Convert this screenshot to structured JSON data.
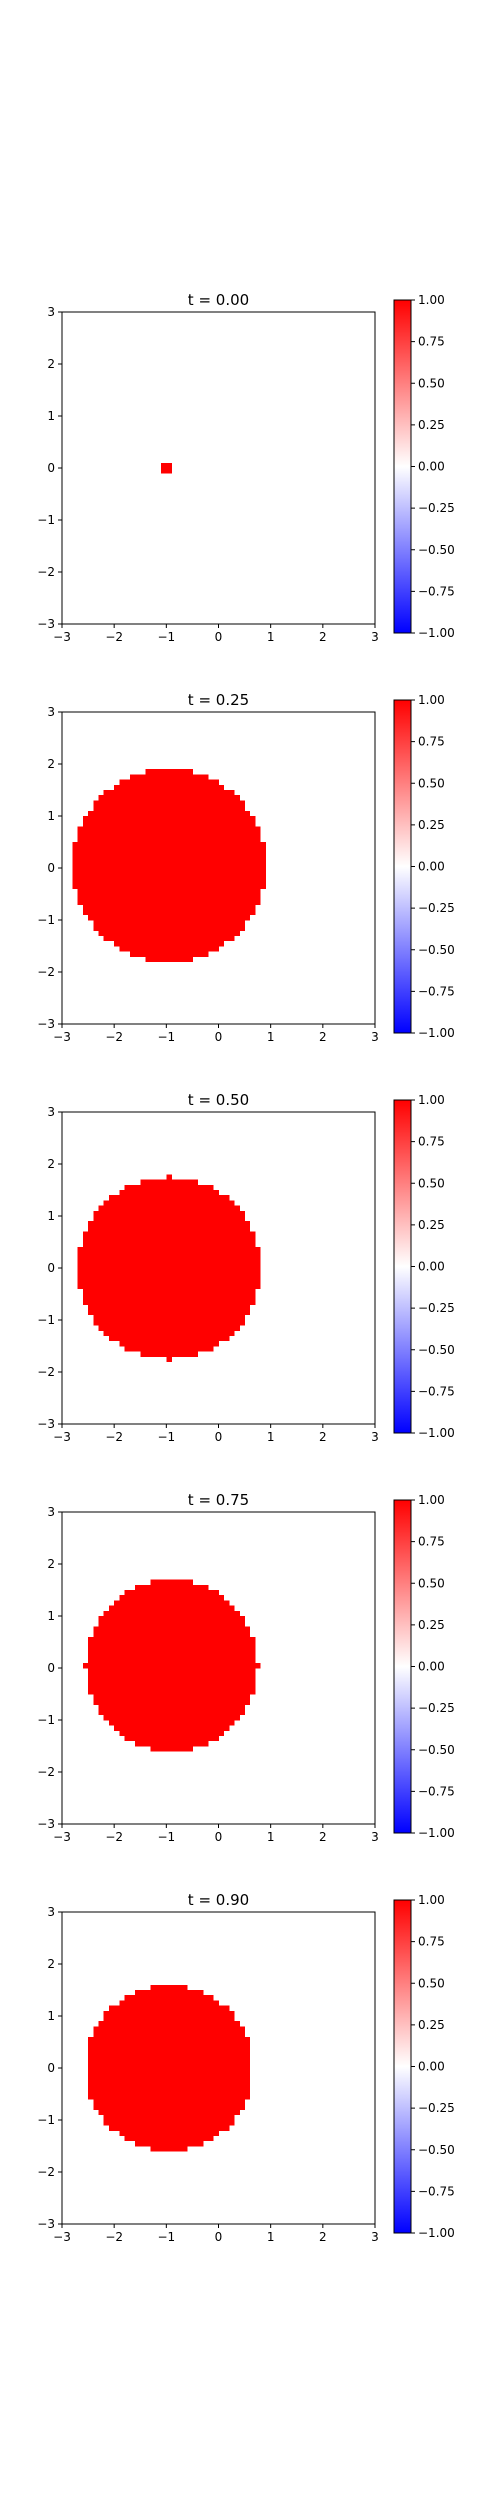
{
  "chart_data": [
    {
      "type": "heatmap",
      "title": "t = 0.00",
      "xlim": [
        -3,
        3
      ],
      "ylim": [
        -3,
        3
      ],
      "xticks": [
        "−3",
        "−2",
        "−1",
        "0",
        "1",
        "2",
        "3"
      ],
      "yticks": [
        "−3",
        "−2",
        "−1",
        "0",
        "1",
        "2",
        "3"
      ],
      "region": {
        "shape": "disc",
        "value": 1.0,
        "center": [
          -1.0,
          0.0
        ],
        "radius": 0.12
      },
      "colorbar": {
        "range": [
          -1,
          1
        ],
        "colormap": "bwr",
        "ticks": [
          "1.00",
          "0.75",
          "0.50",
          "0.25",
          "0.00",
          "−0.25",
          "−0.50",
          "−0.75",
          "−1.00"
        ]
      },
      "grid": false
    },
    {
      "type": "heatmap",
      "title": "t = 0.25",
      "xlim": [
        -3,
        3
      ],
      "ylim": [
        -3,
        3
      ],
      "xticks": [
        "−3",
        "−2",
        "−1",
        "0",
        "1",
        "2",
        "3"
      ],
      "yticks": [
        "−3",
        "−2",
        "−1",
        "0",
        "1",
        "2",
        "3"
      ],
      "region": {
        "shape": "disc",
        "value": 1.0,
        "center": [
          -0.95,
          0.05
        ],
        "radius": 1.85
      },
      "colorbar": {
        "range": [
          -1,
          1
        ],
        "colormap": "bwr",
        "ticks": [
          "1.00",
          "0.75",
          "0.50",
          "0.25",
          "0.00",
          "−0.25",
          "−0.50",
          "−0.75",
          "−1.00"
        ]
      },
      "grid": false
    },
    {
      "type": "heatmap",
      "title": "t = 0.50",
      "xlim": [
        -3,
        3
      ],
      "ylim": [
        -3,
        3
      ],
      "xticks": [
        "−3",
        "−2",
        "−1",
        "0",
        "1",
        "2",
        "3"
      ],
      "yticks": [
        "−3",
        "−2",
        "−1",
        "0",
        "1",
        "2",
        "3"
      ],
      "region": {
        "shape": "disc",
        "value": 1.0,
        "center": [
          -0.95,
          0.0
        ],
        "radius": 1.75
      },
      "colorbar": {
        "range": [
          -1,
          1
        ],
        "colormap": "bwr",
        "ticks": [
          "1.00",
          "0.75",
          "0.50",
          "0.25",
          "0.00",
          "−0.25",
          "−0.50",
          "−0.75",
          "−1.00"
        ]
      },
      "grid": false
    },
    {
      "type": "heatmap",
      "title": "t = 0.75",
      "xlim": [
        -3,
        3
      ],
      "ylim": [
        -3,
        3
      ],
      "xticks": [
        "−3",
        "−2",
        "−1",
        "0",
        "1",
        "2",
        "3"
      ],
      "yticks": [
        "−3",
        "−2",
        "−1",
        "0",
        "1",
        "2",
        "3"
      ],
      "region": {
        "shape": "disc",
        "value": 1.0,
        "center": [
          -0.9,
          0.05
        ],
        "radius": 1.65
      },
      "colorbar": {
        "range": [
          -1,
          1
        ],
        "colormap": "bwr",
        "ticks": [
          "1.00",
          "0.75",
          "0.50",
          "0.25",
          "0.00",
          "−0.25",
          "−0.50",
          "−0.75",
          "−1.00"
        ]
      },
      "grid": false
    },
    {
      "type": "heatmap",
      "title": "t = 0.90",
      "xlim": [
        -3,
        3
      ],
      "ylim": [
        -3,
        3
      ],
      "xticks": [
        "−3",
        "−2",
        "−1",
        "0",
        "1",
        "2",
        "3"
      ],
      "yticks": [
        "−3",
        "−2",
        "−1",
        "0",
        "1",
        "2",
        "3"
      ],
      "region": {
        "shape": "disc",
        "value": 1.0,
        "center": [
          -0.95,
          0.0
        ],
        "radius": 1.6
      },
      "colorbar": {
        "range": [
          -1,
          1
        ],
        "colormap": "bwr",
        "ticks": [
          "1.00",
          "0.75",
          "0.50",
          "0.25",
          "0.00",
          "−0.25",
          "−0.50",
          "−0.75",
          "−1.00"
        ]
      },
      "grid": false
    }
  ],
  "colors": {
    "positive": "#ff0000",
    "zero": "#ffffff",
    "negative": "#0000ff",
    "axis": "#000000"
  }
}
